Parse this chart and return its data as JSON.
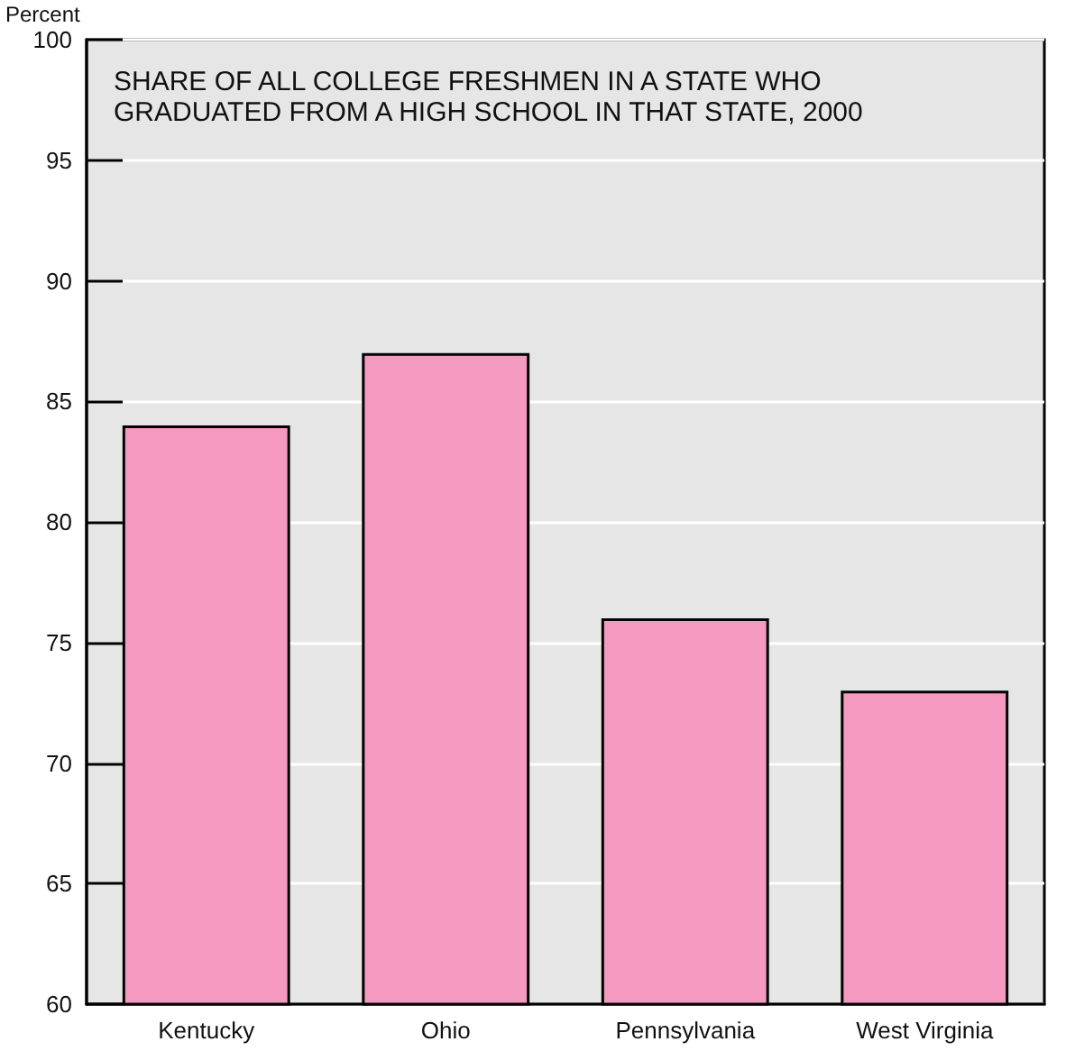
{
  "chart_data": {
    "type": "bar",
    "title": "SHARE OF ALL COLLEGE FRESHMEN IN A STATE WHO GRADUATED FROM A HIGH SCHOOL IN THAT STATE, 2000",
    "ylabel": "Percent",
    "categories": [
      "Kentucky",
      "Ohio",
      "Pennsylvania",
      "West Virginia"
    ],
    "values": [
      84,
      87,
      76,
      73
    ],
    "color": "#f49ac1",
    "ylim": [
      60,
      100
    ],
    "yticks": [
      60,
      65,
      70,
      75,
      80,
      85,
      90,
      95,
      100
    ],
    "grid": "y"
  }
}
